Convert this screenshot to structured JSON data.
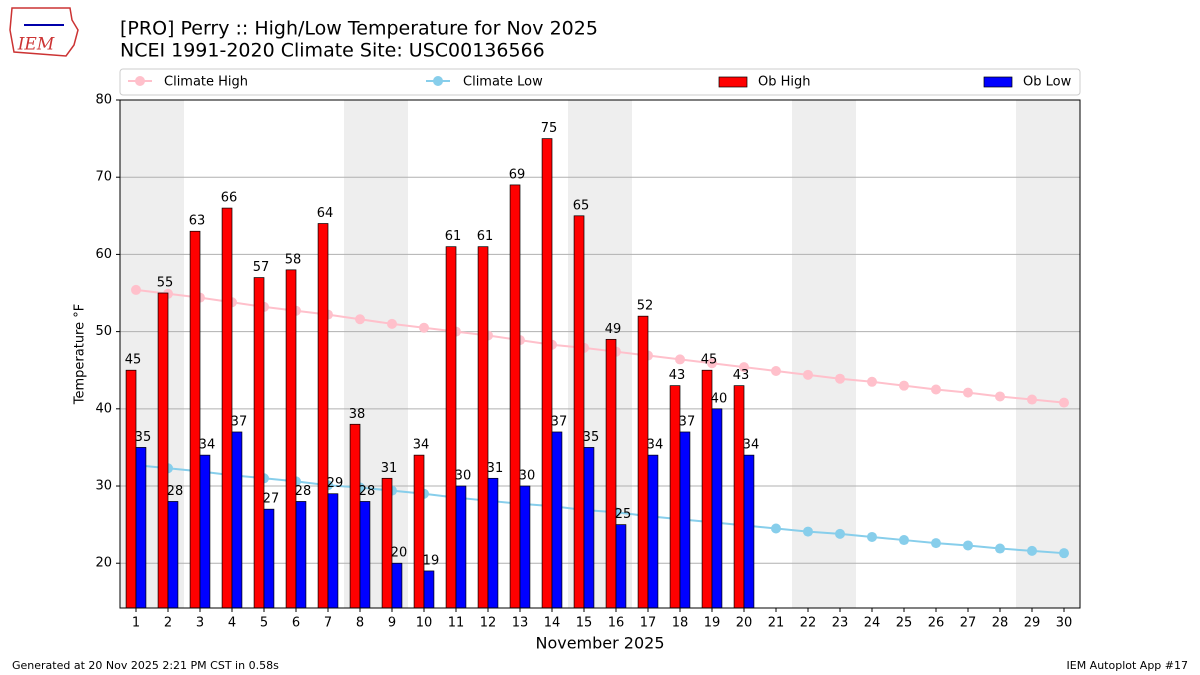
{
  "logo_text": "IEM",
  "footer_left": "Generated at 20 Nov 2025 2:21 PM CST in 0.58s",
  "footer_right": "IEM Autoplot App #17",
  "chart_data": {
    "type": "bar_line",
    "title": "[PRO] Perry :: High/Low Temperature for Nov 2025",
    "subtitle": "NCEI 1991-2020 Climate Site: USC00136566",
    "xlabel": "November 2025",
    "ylabel": "Temperature °F",
    "x": [
      1,
      2,
      3,
      4,
      5,
      6,
      7,
      8,
      9,
      10,
      11,
      12,
      13,
      14,
      15,
      16,
      17,
      18,
      19,
      20,
      21,
      22,
      23,
      24,
      25,
      26,
      27,
      28,
      29,
      30
    ],
    "xlim": [
      0.5,
      30.5
    ],
    "ylim": [
      14.2,
      80
    ],
    "yticks": [
      20,
      30,
      40,
      50,
      60,
      70,
      80
    ],
    "grid": true,
    "weekend_days": [
      1,
      2,
      8,
      9,
      15,
      16,
      22,
      23,
      29,
      30
    ],
    "series": [
      {
        "name": "Climate High",
        "kind": "line",
        "color": "#ffc0cb",
        "values": [
          55.4,
          54.9,
          54.4,
          53.8,
          53.2,
          52.7,
          52.2,
          51.6,
          51.0,
          50.5,
          50.0,
          49.5,
          48.9,
          48.3,
          47.9,
          47.4,
          46.9,
          46.4,
          45.9,
          45.4,
          44.9,
          44.4,
          43.9,
          43.5,
          43.0,
          42.5,
          42.1,
          41.6,
          41.2,
          40.8
        ]
      },
      {
        "name": "Climate Low",
        "kind": "line",
        "color": "#87ceeb",
        "values": [
          32.7,
          32.3,
          31.9,
          31.4,
          31.0,
          30.6,
          30.1,
          29.8,
          29.4,
          29.0,
          28.5,
          28.1,
          27.7,
          27.4,
          26.9,
          26.6,
          26.1,
          25.7,
          25.3,
          24.9,
          24.5,
          24.1,
          23.8,
          23.4,
          23.0,
          22.6,
          22.3,
          21.9,
          21.6,
          21.3
        ]
      },
      {
        "name": "Ob High",
        "kind": "bar",
        "color": "#ff0000",
        "values": [
          45,
          55,
          63,
          66,
          57,
          58,
          64,
          38,
          31,
          34,
          61,
          61,
          69,
          75,
          65,
          49,
          52,
          43,
          45,
          43,
          null,
          null,
          null,
          null,
          null,
          null,
          null,
          null,
          null,
          null
        ]
      },
      {
        "name": "Ob Low",
        "kind": "bar",
        "color": "#0000ff",
        "values": [
          35,
          28,
          34,
          37,
          27,
          28,
          29,
          28,
          20,
          19,
          30,
          31,
          30,
          37,
          35,
          25,
          34,
          37,
          40,
          34,
          null,
          null,
          null,
          null,
          null,
          null,
          null,
          null,
          null,
          null
        ]
      }
    ]
  }
}
